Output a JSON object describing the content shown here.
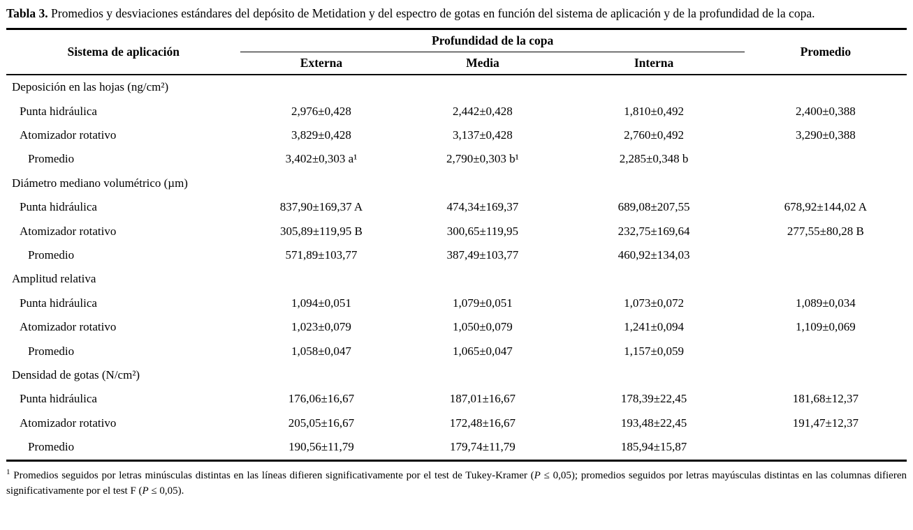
{
  "caption": {
    "label": "Tabla 3.",
    "text": " Promedios y desviaciones estándares del depósito de Metidation y del espectro de gotas en función del sistema de aplicación y de la profundidad de la copa."
  },
  "table": {
    "col1_header": "Sistema de aplicación",
    "span_header": "Profundidad de la copa",
    "sub_headers": [
      "Externa",
      "Media",
      "Interna"
    ],
    "promedio_header": "Promedio",
    "sections": [
      {
        "title": "Deposición en las hojas (ng/cm²)",
        "rows": [
          {
            "label": "Punta hidráulica",
            "values": [
              "2,976±0,428",
              "2,442±0,428",
              "1,810±0,492",
              "2,400±0,388"
            ]
          },
          {
            "label": "Atomizador rotativo",
            "values": [
              "3,829±0,428",
              "3,137±0,428",
              "2,760±0,492",
              "3,290±0,388"
            ]
          },
          {
            "label": "Promedio",
            "values": [
              "3,402±0,303 a¹",
              "2,790±0,303 b¹",
              "2,285±0,348 b",
              ""
            ]
          }
        ]
      },
      {
        "title": "Diámetro mediano volumétrico (µm)",
        "rows": [
          {
            "label": "Punta hidráulica",
            "values": [
              "837,90±169,37 A",
              "474,34±169,37",
              "689,08±207,55",
              "678,92±144,02 A"
            ]
          },
          {
            "label": "Atomizador rotativo",
            "values": [
              "305,89±119,95 B",
              "300,65±119,95",
              "232,75±169,64",
              "277,55±80,28 B"
            ]
          },
          {
            "label": "Promedio",
            "values": [
              "571,89±103,77",
              "387,49±103,77",
              "460,92±134,03",
              ""
            ]
          }
        ]
      },
      {
        "title": "Amplitud relativa",
        "rows": [
          {
            "label": "Punta hidráulica",
            "values": [
              "1,094±0,051",
              "1,079±0,051",
              "1,073±0,072",
              "1,089±0,034"
            ]
          },
          {
            "label": "Atomizador rotativo",
            "values": [
              "1,023±0,079",
              "1,050±0,079",
              "1,241±0,094",
              "1,109±0,069"
            ]
          },
          {
            "label": "Promedio",
            "values": [
              "1,058±0,047",
              "1,065±0,047",
              "1,157±0,059",
              ""
            ]
          }
        ]
      },
      {
        "title": "Densidad de gotas (N/cm²)",
        "rows": [
          {
            "label": "Punta hidráulica",
            "values": [
              "176,06±16,67",
              "187,01±16,67",
              "178,39±22,45",
              "181,68±12,37"
            ]
          },
          {
            "label": "Atomizador rotativo",
            "values": [
              "205,05±16,67",
              "172,48±16,67",
              "193,48±22,45",
              "191,47±12,37"
            ]
          },
          {
            "label": "Promedio",
            "values": [
              "190,56±11,79",
              "179,74±11,79",
              "185,94±15,87",
              ""
            ]
          }
        ]
      }
    ]
  },
  "footnote": {
    "sup": "1",
    "parts": {
      "p0": " Promedios seguidos por letras minúsculas distintas en las líneas difieren significativamente por el test de Tukey-Kramer (",
      "p1": "P",
      "p2": " ≤ 0,05); promedios seguidos por letras mayúsculas distintas en las columnas difieren significativamente por el test F (",
      "p3": "P",
      "p4": " ≤ 0,05)."
    }
  }
}
